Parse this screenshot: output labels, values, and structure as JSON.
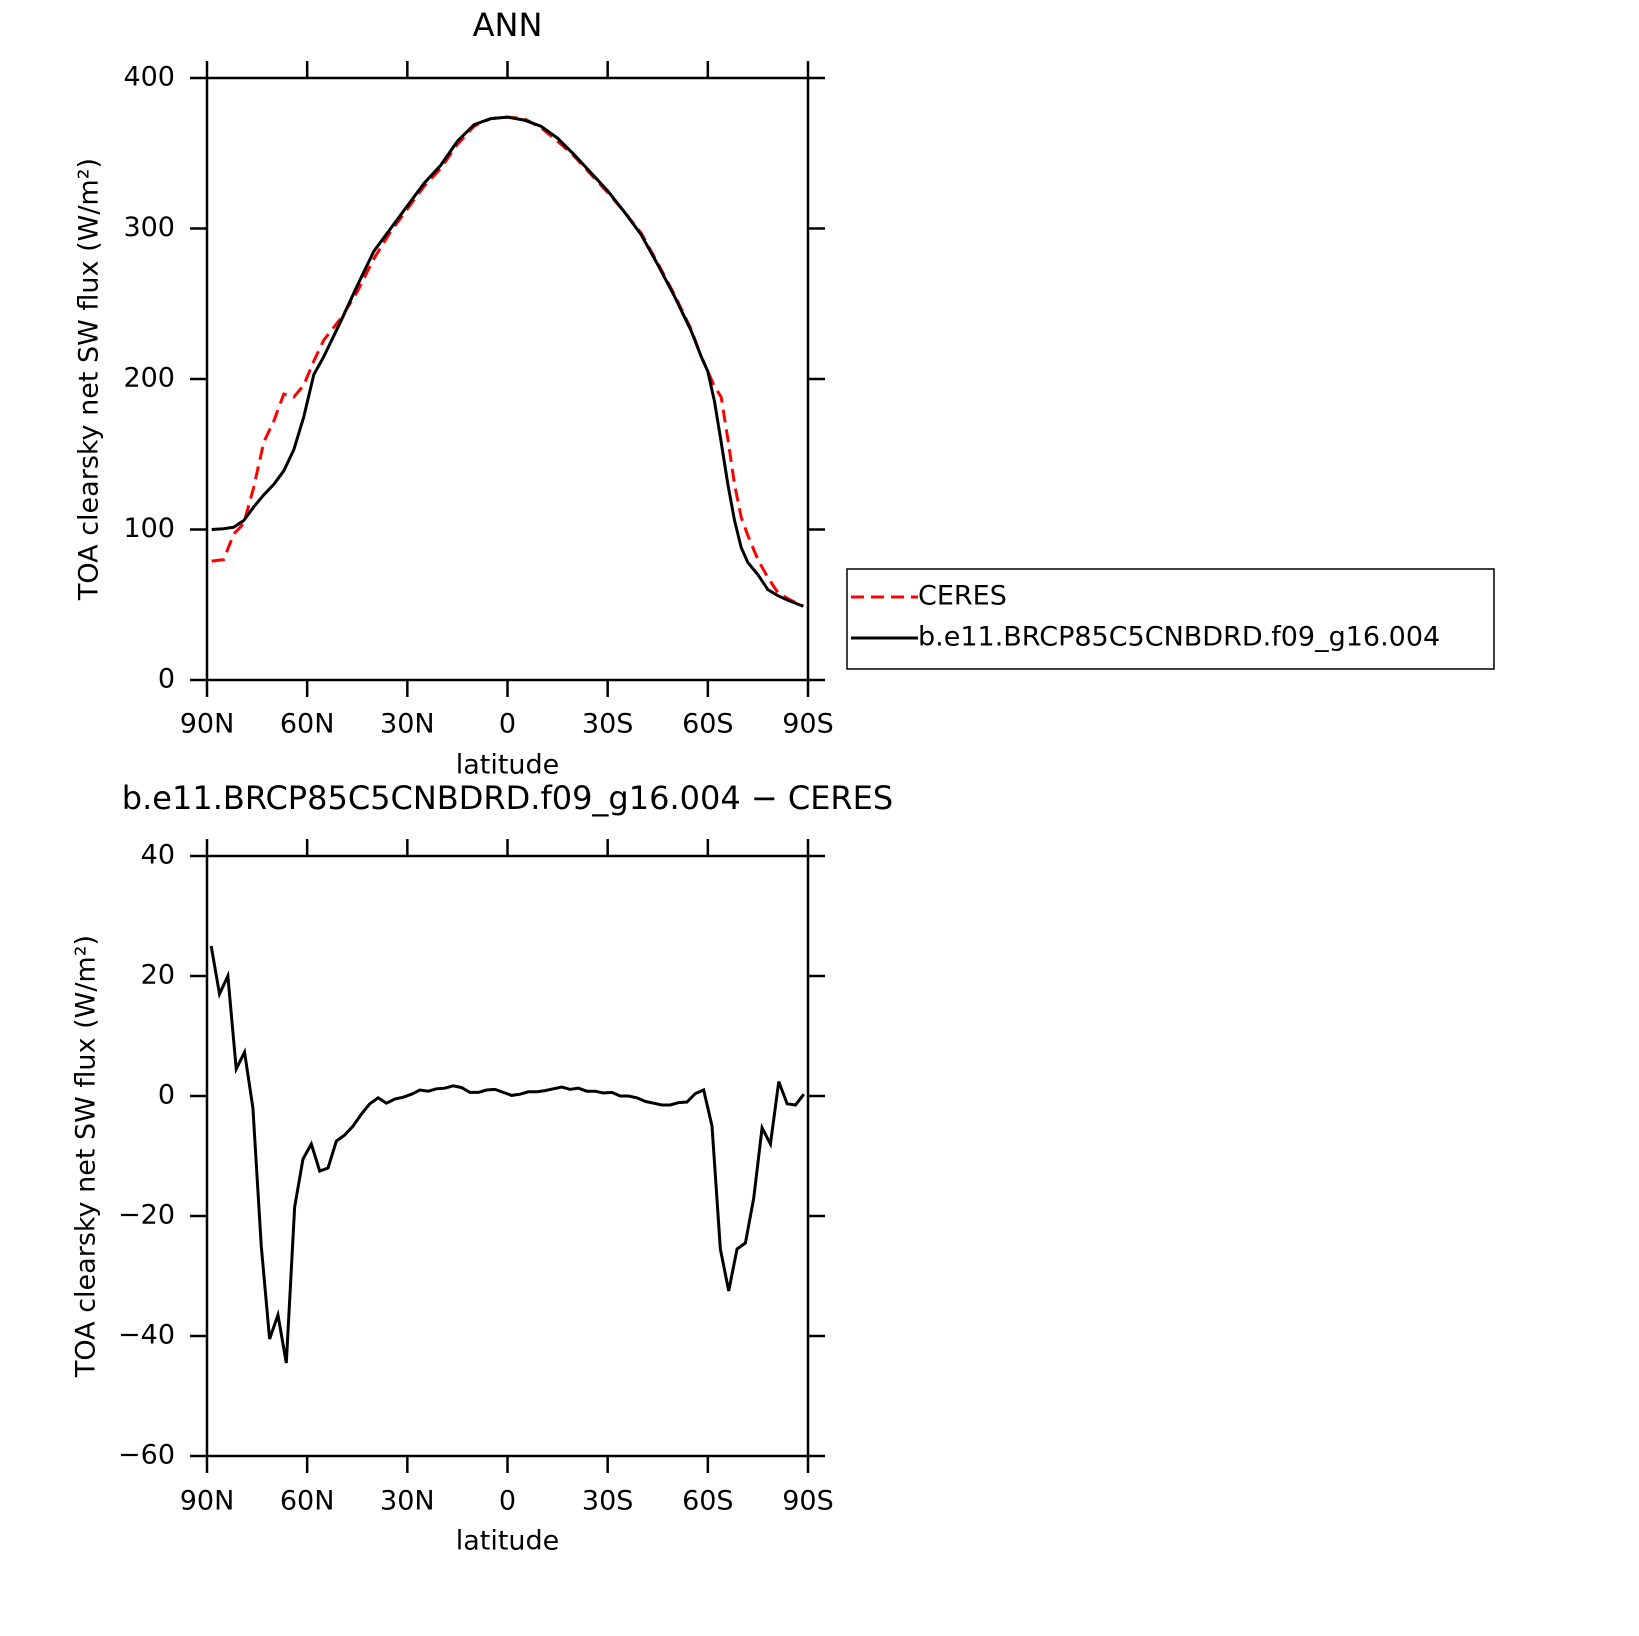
{
  "chart_data": [
    {
      "type": "line",
      "title": "ANN",
      "xlabel": "latitude",
      "ylabel": "TOA clearsky net SW flux (W/m²)",
      "x": [
        88.6,
        85,
        82,
        79,
        76,
        73,
        70,
        67,
        64,
        61,
        58,
        55,
        50,
        45,
        40,
        35,
        30,
        25,
        20,
        15,
        10,
        5,
        0,
        -5,
        -10,
        -15,
        -20,
        -25,
        -30,
        -35,
        -40,
        -45,
        -50,
        -55,
        -58,
        -60,
        -62,
        -64,
        -66,
        -68,
        -70,
        -72,
        -75,
        -78,
        -81,
        -84,
        -88.6
      ],
      "series": [
        {
          "name": "CERES",
          "color": "#ff0000",
          "style": "dashed",
          "values": [
            79,
            80,
            97,
            104,
            128,
            158,
            172,
            190,
            188,
            196,
            212,
            226,
            240,
            258,
            280,
            298,
            313,
            328,
            340,
            356,
            368,
            373,
            374,
            373,
            367,
            358,
            348,
            336,
            324,
            311,
            297,
            277,
            256,
            233,
            215,
            205,
            195,
            188,
            160,
            130,
            108,
            96,
            80,
            68,
            58,
            54,
            49
          ]
        },
        {
          "name": "b.e11.BRCP85C5CNBDRD.f09_g16.004",
          "color": "#000000",
          "style": "solid",
          "values": [
            100,
            100.5,
            101.5,
            106,
            115,
            123,
            130,
            139,
            153,
            175,
            203,
            215,
            238,
            262,
            285,
            300,
            315,
            330,
            342,
            358,
            369,
            373,
            374,
            372,
            368,
            360,
            349,
            337,
            325,
            311,
            296,
            276,
            255,
            232,
            215,
            205,
            185,
            158,
            130,
            106,
            88,
            78,
            70,
            60,
            56,
            53,
            49
          ]
        }
      ],
      "xlim": [
        90,
        -90
      ],
      "xticks": [
        {
          "value": 90,
          "label": "90N"
        },
        {
          "value": 60,
          "label": "60N"
        },
        {
          "value": 30,
          "label": "30N"
        },
        0,
        {
          "value": -30,
          "label": "30S"
        },
        {
          "value": -60,
          "label": "60S"
        },
        {
          "value": -90,
          "label": "90S"
        }
      ],
      "ylim": [
        0,
        400
      ],
      "yticks": [
        0,
        100,
        200,
        300,
        400
      ],
      "legend": "right"
    },
    {
      "type": "line",
      "title": "b.e11.BRCP85C5CNBDRD.f09_g16.004 − CERES",
      "xlabel": "latitude",
      "ylabel": "TOA clearsky net SW flux (W/m²)",
      "x": [
        88.75,
        86.25,
        83.75,
        81.25,
        78.75,
        76.25,
        73.75,
        71.25,
        68.75,
        66.25,
        63.75,
        61.25,
        58.75,
        56.25,
        53.75,
        51.25,
        48.75,
        46.25,
        43.75,
        41.25,
        38.75,
        36.25,
        33.75,
        31.25,
        28.75,
        26.25,
        23.75,
        21.25,
        18.75,
        16.25,
        13.75,
        11.25,
        8.75,
        6.25,
        3.75,
        1.25,
        -1.25,
        -3.75,
        -6.25,
        -8.75,
        -11.25,
        -13.75,
        -16.25,
        -18.75,
        -21.25,
        -23.75,
        -26.25,
        -28.75,
        -31.25,
        -33.75,
        -36.25,
        -38.75,
        -41.25,
        -43.75,
        -46.25,
        -48.75,
        -51.25,
        -53.75,
        -56.25,
        -58.75,
        -61.25,
        -63.75,
        -66.25,
        -68.75,
        -71.25,
        -73.75,
        -76.25,
        -78.75,
        -81.25,
        -83.75,
        -86.25,
        -88.75
      ],
      "values": [
        25,
        17,
        20,
        4.5,
        7.3,
        -2,
        -25,
        -40.5,
        -36.5,
        -44.5,
        -18.5,
        -10.5,
        -8,
        -12.5,
        -12,
        -7.5,
        -6.5,
        -5,
        -3,
        -1.3,
        -0.3,
        -1.2,
        -0.5,
        -0.2,
        0.3,
        1,
        0.8,
        1.2,
        1.3,
        1.7,
        1.4,
        0.6,
        0.6,
        1,
        1.1,
        0.6,
        0.1,
        0.3,
        0.7,
        0.7,
        0.9,
        1.2,
        1.5,
        1.1,
        1.3,
        0.8,
        0.8,
        0.5,
        0.6,
        0,
        0,
        -0.3,
        -0.9,
        -1.2,
        -1.5,
        -1.5,
        -1.1,
        -1,
        0.4,
        1,
        -5,
        -25.5,
        -32.5,
        -25.5,
        -24.5,
        -17,
        -5.3,
        -8,
        2.4,
        -1.3,
        -1.5,
        0.3
      ],
      "color": "#000000",
      "style": "solid",
      "xlim": [
        90,
        -90
      ],
      "xticks": [
        {
          "value": 90,
          "label": "90N"
        },
        {
          "value": 60,
          "label": "60N"
        },
        {
          "value": 30,
          "label": "30N"
        },
        0,
        {
          "value": -30,
          "label": "30S"
        },
        {
          "value": -60,
          "label": "60S"
        },
        {
          "value": -90,
          "label": "90S"
        }
      ],
      "ylim": [
        -60,
        40
      ],
      "yticks": [
        {
          "value": -60,
          "label": "−60"
        },
        {
          "value": -40,
          "label": "−40"
        },
        {
          "value": -20,
          "label": "−20"
        },
        0,
        20,
        40
      ]
    }
  ]
}
